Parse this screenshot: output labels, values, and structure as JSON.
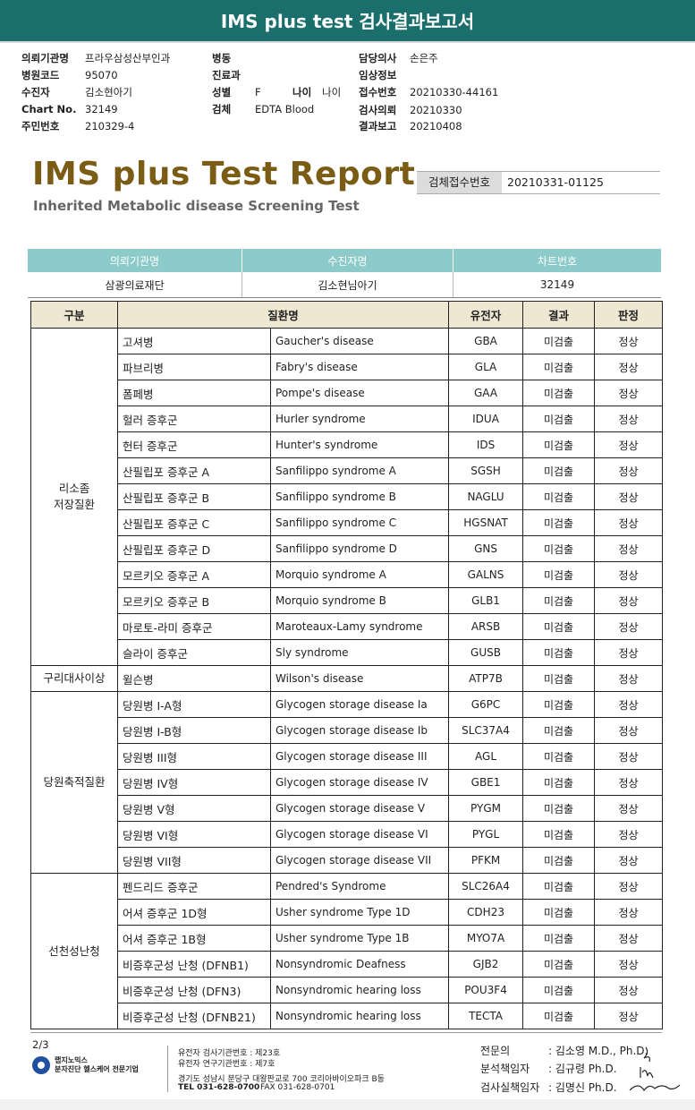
{
  "header": {
    "title": "IMS plus test 검사결과보고서"
  },
  "meta": {
    "col1": [
      {
        "label": "의뢰기관명",
        "value": "프라우삼성산부인과"
      },
      {
        "label": "병원코드",
        "value": "95070"
      },
      {
        "label": "수진자",
        "value": "김소현아기"
      },
      {
        "label": "Chart No.",
        "value": "32149"
      },
      {
        "label": "주민번호",
        "value": "210329-4"
      }
    ],
    "col2": [
      {
        "label": "병동",
        "value": ""
      },
      {
        "label": "진료과",
        "value": ""
      },
      {
        "label": "성별",
        "value": "F"
      },
      {
        "label": "검체",
        "value": "EDTA Blood"
      }
    ],
    "age": {
      "label": "나이",
      "value": "나이"
    },
    "col3": [
      {
        "label": "담당의사",
        "value": "손은주"
      },
      {
        "label": "임상정보",
        "value": ""
      },
      {
        "label": "접수번호",
        "value": "20210330-44161"
      },
      {
        "label": "검사의뢰",
        "value": "20210330"
      },
      {
        "label": "결과보고",
        "value": "20210408"
      }
    ]
  },
  "report": {
    "title": "IMS plus Test Report",
    "subtitle": "Inherited Metabolic disease Screening Test",
    "receipt_label": "검체접수번호",
    "receipt_value": "20210331-01125"
  },
  "info": {
    "headers": [
      "의뢰기관명",
      "수진자명",
      "차트번호"
    ],
    "values": [
      "삼광의료재단",
      "김소현님아기",
      "32149"
    ]
  },
  "table": {
    "headers": [
      "구분",
      "질환명",
      "유전자",
      "결과",
      "판정"
    ],
    "categories": [
      "리소좀\n저장질환",
      "구리대사이상",
      "당원축적질환",
      "선천성난청"
    ],
    "rows": [
      [
        "고셔병",
        "Gaucher's disease",
        "GBA",
        "미검출",
        "정상"
      ],
      [
        "파브리병",
        "Fabry's disease",
        "GLA",
        "미검출",
        "정상"
      ],
      [
        "폼페병",
        "Pompe's disease",
        "GAA",
        "미검출",
        "정상"
      ],
      [
        "헐러 증후군",
        "Hurler syndrome",
        "IDUA",
        "미검출",
        "정상"
      ],
      [
        "헌터 증후군",
        "Hunter's syndrome",
        "IDS",
        "미검출",
        "정상"
      ],
      [
        "산필립포 증후군 A",
        "Sanfilippo syndrome A",
        "SGSH",
        "미검출",
        "정상"
      ],
      [
        "산필립포 증후군 B",
        "Sanfilippo syndrome B",
        "NAGLU",
        "미검출",
        "정상"
      ],
      [
        "산필립포 증후군 C",
        "Sanfilippo syndrome C",
        "HGSNAT",
        "미검출",
        "정상"
      ],
      [
        "산필립포 증후군 D",
        "Sanfilippo syndrome D",
        "GNS",
        "미검출",
        "정상"
      ],
      [
        "모르키오 증후군 A",
        "Morquio syndrome A",
        "GALNS",
        "미검출",
        "정상"
      ],
      [
        "모르키오 증후군 B",
        "Morquio syndrome B",
        "GLB1",
        "미검출",
        "정상"
      ],
      [
        "마로토-라미 증후군",
        "Maroteaux-Lamy syndrome",
        "ARSB",
        "미검출",
        "정상"
      ],
      [
        "슬라이 증후군",
        "Sly syndrome",
        "GUSB",
        "미검출",
        "정상"
      ],
      [
        "윌슨병",
        "Wilson's disease",
        "ATP7B",
        "미검출",
        "정상"
      ],
      [
        "당원병 I-A형",
        "Glycogen storage disease Ia",
        "G6PC",
        "미검출",
        "정상"
      ],
      [
        "당원병 I-B형",
        "Glycogen storage disease Ib",
        "SLC37A4",
        "미검출",
        "정상"
      ],
      [
        "당원병 III형",
        "Glycogen storage disease III",
        "AGL",
        "미검출",
        "정상"
      ],
      [
        "당원병 IV형",
        "Glycogen storage disease IV",
        "GBE1",
        "미검출",
        "정상"
      ],
      [
        "당원병 V형",
        "Glycogen storage disease V",
        "PYGM",
        "미검출",
        "정상"
      ],
      [
        "당원병 VI형",
        "Glycogen storage disease VI",
        "PYGL",
        "미검출",
        "정상"
      ],
      [
        "당원병 VII형",
        "Glycogen storage disease VII",
        "PFKM",
        "미검출",
        "정상"
      ],
      [
        "펜드리드 증후군",
        "Pendred's Syndrome",
        "SLC26A4",
        "미검출",
        "정상"
      ],
      [
        "어셔 증후군 1D형",
        "Usher syndrome Type 1D",
        "CDH23",
        "미검출",
        "정상"
      ],
      [
        "어셔 증후군 1B형",
        "Usher syndrome Type 1B",
        "MYO7A",
        "미검출",
        "정상"
      ],
      [
        "비증후군성 난청 (DFNB1)",
        "Nonsyndromic Deafness",
        "GJB2",
        "미검출",
        "정상"
      ],
      [
        "비증후군성 난청 (DFN3)",
        "Nonsyndromic hearing loss",
        "POU3F4",
        "미검출",
        "정상"
      ],
      [
        "비증후군성 난청 (DFNB21)",
        "Nonsyndromic hearing loss",
        "TECTA",
        "미검출",
        "정상"
      ]
    ]
  },
  "footer": {
    "page": "2/3",
    "logo_line1": "랩지노믹스",
    "logo_line2": "분자진단 헬스케어 전문기업",
    "addr1": "유전자 검사기관번호 : 제23호",
    "addr2": "유전자 연구기관번호 : 제7호",
    "addr3": "경기도 성남시 분당구 대왕판교로 700 코리아바이오파크 B동",
    "tel": "TEL 031-628-0700",
    "fax": "FAX 031-628-0701",
    "signers": [
      {
        "role": "전문의",
        "name": ": 김소영 M.D., Ph.D."
      },
      {
        "role": "분석책임자",
        "name": ": 김규령 Ph.D."
      },
      {
        "role": "검사실책임자",
        "name": ": 김명신 Ph.D."
      }
    ]
  }
}
